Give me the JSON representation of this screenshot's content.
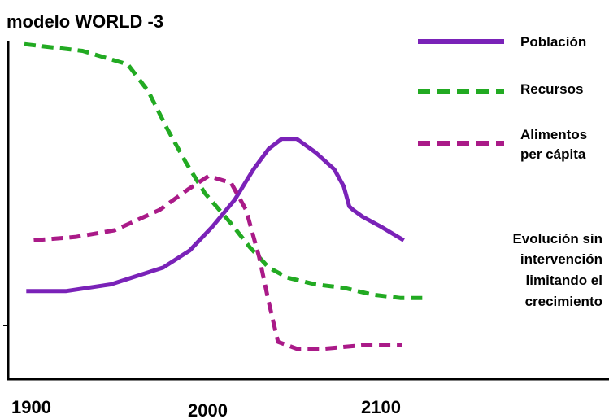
{
  "chart_data": {
    "type": "line",
    "title": "modelo WORLD -3",
    "xlabel": "",
    "ylabel": "",
    "xlim": [
      1900,
      2210
    ],
    "ylim": [
      0,
      1
    ],
    "xticks": [
      "1900",
      "2000",
      "2100"
    ],
    "grid": false,
    "legend_position": "top-right",
    "series": [
      {
        "name": "Población",
        "color": "#7a22b8",
        "style": "solid",
        "points": [
          [
            1901,
            0.26
          ],
          [
            1922,
            0.26
          ],
          [
            1946,
            0.28
          ],
          [
            1974,
            0.33
          ],
          [
            1988,
            0.38
          ],
          [
            2000,
            0.45
          ],
          [
            2012,
            0.53
          ],
          [
            2022,
            0.62
          ],
          [
            2030,
            0.68
          ],
          [
            2037,
            0.71
          ],
          [
            2045,
            0.71
          ],
          [
            2055,
            0.67
          ],
          [
            2065,
            0.62
          ],
          [
            2070,
            0.57
          ],
          [
            2073,
            0.51
          ],
          [
            2075,
            0.5
          ],
          [
            2080,
            0.48
          ],
          [
            2090,
            0.45
          ],
          [
            2102,
            0.41
          ]
        ]
      },
      {
        "name": "Recursos",
        "color": "#22aa22",
        "style": "dashed",
        "points": [
          [
            1900,
            0.99
          ],
          [
            1931,
            0.97
          ],
          [
            1955,
            0.93
          ],
          [
            1966,
            0.85
          ],
          [
            1976,
            0.74
          ],
          [
            1986,
            0.64
          ],
          [
            1996,
            0.55
          ],
          [
            2010,
            0.46
          ],
          [
            2020,
            0.39
          ],
          [
            2030,
            0.33
          ],
          [
            2040,
            0.3
          ],
          [
            2055,
            0.28
          ],
          [
            2070,
            0.27
          ],
          [
            2085,
            0.25
          ],
          [
            2100,
            0.24
          ],
          [
            2115,
            0.24
          ]
        ]
      },
      {
        "name": "Alimentos per cápita",
        "color": "#aa1a88",
        "style": "dashed",
        "points": [
          [
            1905,
            0.41
          ],
          [
            1927,
            0.42
          ],
          [
            1948,
            0.44
          ],
          [
            1972,
            0.5
          ],
          [
            1987,
            0.56
          ],
          [
            1998,
            0.6
          ],
          [
            2010,
            0.58
          ],
          [
            2018,
            0.5
          ],
          [
            2025,
            0.36
          ],
          [
            2030,
            0.23
          ],
          [
            2035,
            0.11
          ],
          [
            2045,
            0.09
          ],
          [
            2060,
            0.09
          ],
          [
            2080,
            0.1
          ],
          [
            2101,
            0.1
          ]
        ]
      }
    ],
    "annotation": [
      "Evolución sin",
      "intervención",
      "limitando el",
      "crecimiento"
    ]
  }
}
